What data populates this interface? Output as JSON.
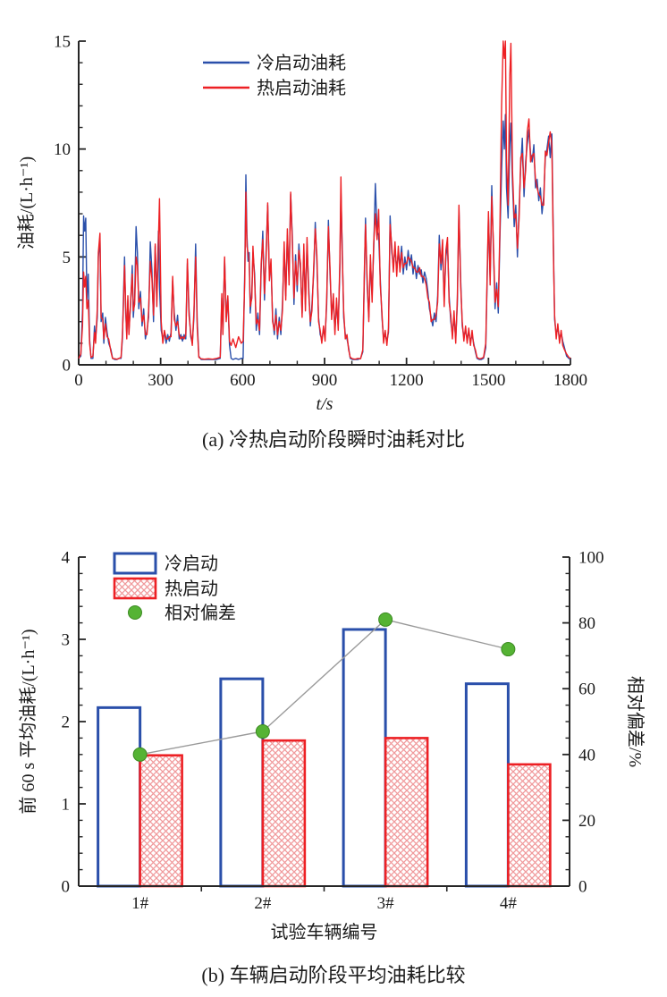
{
  "chart_data": [
    {
      "type": "line",
      "caption": "(a) 冷热启动阶段瞬时油耗对比",
      "xlabel": "t/s",
      "ylabel": "油耗/(L·h⁻¹)",
      "xlim": [
        0,
        1800
      ],
      "ylim": [
        0,
        15
      ],
      "xticks": [
        0,
        300,
        600,
        900,
        1200,
        1500,
        1800
      ],
      "x_minor_step": 100,
      "yticks": [
        0,
        5,
        10,
        15
      ],
      "y_minor_step": 1,
      "grid": false,
      "legend_position": "top-center",
      "axis_color": "#262626",
      "x": [
        0,
        8,
        14,
        18,
        22,
        26,
        30,
        35,
        40,
        45,
        52,
        58,
        62,
        68,
        72,
        78,
        82,
        88,
        92,
        98,
        104,
        110,
        118,
        124,
        132,
        140,
        148,
        155,
        160,
        164,
        168,
        172,
        176,
        180,
        184,
        190,
        196,
        200,
        205,
        210,
        215,
        220,
        226,
        232,
        238,
        244,
        250,
        256,
        262,
        268,
        274,
        280,
        286,
        292,
        296,
        302,
        308,
        314,
        320,
        326,
        332,
        338,
        344,
        350,
        356,
        362,
        368,
        374,
        380,
        386,
        392,
        398,
        404,
        410,
        416,
        422,
        428,
        434,
        440,
        448,
        460,
        475,
        490,
        505,
        518,
        524,
        528,
        534,
        540,
        546,
        552,
        558,
        565,
        575,
        585,
        595,
        602,
        608,
        612,
        616,
        620,
        624,
        628,
        634,
        638,
        644,
        650,
        656,
        662,
        668,
        674,
        680,
        686,
        692,
        698,
        704,
        710,
        716,
        722,
        728,
        734,
        740,
        746,
        752,
        758,
        764,
        770,
        776,
        782,
        788,
        794,
        800,
        806,
        812,
        818,
        824,
        830,
        836,
        842,
        848,
        854,
        860,
        866,
        872,
        878,
        884,
        890,
        896,
        902,
        908,
        914,
        920,
        926,
        932,
        938,
        944,
        950,
        956,
        960,
        964,
        970,
        976,
        982,
        988,
        994,
        1002,
        1012,
        1022,
        1032,
        1040,
        1046,
        1050,
        1056,
        1062,
        1068,
        1074,
        1080,
        1086,
        1092,
        1098,
        1104,
        1110,
        1116,
        1122,
        1128,
        1134,
        1140,
        1146,
        1152,
        1158,
        1164,
        1170,
        1176,
        1182,
        1188,
        1194,
        1200,
        1206,
        1212,
        1218,
        1224,
        1230,
        1236,
        1242,
        1248,
        1254,
        1260,
        1266,
        1272,
        1278,
        1284,
        1290,
        1296,
        1302,
        1308,
        1314,
        1320,
        1326,
        1332,
        1338,
        1344,
        1350,
        1356,
        1362,
        1368,
        1374,
        1380,
        1386,
        1392,
        1398,
        1404,
        1410,
        1416,
        1422,
        1428,
        1434,
        1440,
        1446,
        1452,
        1458,
        1466,
        1474,
        1482,
        1490,
        1496,
        1500,
        1506,
        1512,
        1518,
        1524,
        1530,
        1536,
        1542,
        1548,
        1554,
        1558,
        1562,
        1566,
        1572,
        1578,
        1582,
        1588,
        1594,
        1600,
        1606,
        1612,
        1618,
        1624,
        1630,
        1636,
        1642,
        1648,
        1654,
        1660,
        1666,
        1672,
        1678,
        1684,
        1690,
        1696,
        1702,
        1708,
        1714,
        1720,
        1726,
        1732,
        1738,
        1742,
        1748,
        1754,
        1760,
        1766,
        1772,
        1778,
        1786,
        1794,
        1800
      ],
      "series": [
        {
          "name": "冷启动油耗",
          "color": "#2a4faa",
          "values": [
            0.3,
            0.4,
            2.5,
            6.9,
            6.2,
            6.8,
            3.0,
            4.2,
            1.2,
            0.3,
            0.3,
            1.8,
            1.2,
            2.2,
            5.0,
            5.8,
            2.0,
            2.4,
            1.0,
            2.2,
            1.5,
            1.0,
            0.7,
            0.3,
            0.25,
            0.25,
            0.3,
            0.3,
            1.2,
            3.2,
            5.0,
            2.4,
            1.4,
            3.0,
            1.6,
            2.8,
            4.6,
            2.2,
            3.1,
            6.4,
            5.2,
            2.6,
            3.4,
            1.8,
            2.6,
            1.2,
            1.6,
            2.2,
            5.7,
            4.4,
            2.0,
            5.5,
            3.0,
            6.2,
            3.6,
            1.6,
            1.2,
            1.5,
            1.0,
            1.4,
            1.1,
            1.5,
            3.9,
            2.4,
            1.6,
            2.3,
            1.2,
            1.4,
            1.1,
            1.4,
            1.2,
            4.7,
            2.6,
            1.3,
            1.0,
            2.2,
            5.6,
            2.0,
            0.4,
            0.25,
            0.25,
            0.25,
            0.25,
            0.25,
            0.3,
            3.1,
            1.6,
            4.9,
            2.2,
            3.1,
            0.9,
            0.3,
            0.25,
            0.3,
            0.25,
            0.3,
            0.3,
            4.5,
            8.8,
            6.0,
            4.8,
            5.2,
            2.4,
            3.4,
            5.2,
            4.2,
            1.6,
            2.4,
            1.4,
            4.4,
            6.2,
            3.0,
            5.2,
            7.4,
            4.2,
            4.6,
            2.2,
            1.4,
            2.6,
            1.2,
            2.2,
            1.4,
            2.8,
            5.4,
            3.2,
            6.0,
            4.0,
            7.9,
            6.0,
            2.8,
            5.1,
            3.4,
            5.6,
            4.4,
            2.4,
            5.3,
            2.8,
            5.6,
            3.6,
            1.8,
            2.8,
            4.2,
            6.6,
            4.8,
            2.2,
            1.4,
            1.2,
            1.6,
            1.3,
            2.8,
            6.7,
            4.2,
            2.4,
            3.0,
            1.6,
            2.8,
            1.8,
            4.4,
            8.0,
            5.8,
            2.2,
            1.4,
            1.2,
            0.8,
            0.3,
            0.25,
            0.25,
            0.25,
            0.3,
            0.6,
            4.2,
            6.8,
            3.6,
            2.2,
            4.8,
            3.2,
            5.4,
            8.4,
            6.2,
            6.0,
            4.0,
            2.2,
            1.2,
            1.4,
            1.1,
            1.5,
            6.9,
            5.2,
            4.6,
            5.4,
            4.4,
            5.2,
            4.6,
            5.5,
            4.2,
            5.0,
            4.4,
            5.3,
            4.6,
            5.1,
            4.2,
            4.8,
            4.0,
            4.6,
            4.2,
            4.4,
            3.8,
            4.3,
            4.0,
            3.4,
            2.6,
            2.2,
            1.8,
            2.4,
            2.0,
            3.2,
            6.0,
            4.4,
            5.4,
            3.0,
            5.0,
            5.6,
            3.2,
            2.0,
            1.4,
            2.2,
            1.2,
            2.8,
            7.2,
            4.0,
            1.8,
            1.3,
            1.6,
            1.2,
            1.5,
            1.1,
            1.4,
            1.0,
            0.6,
            0.3,
            0.25,
            0.25,
            0.3,
            0.8,
            4.4,
            6.9,
            4.0,
            8.3,
            5.4,
            2.6,
            3.8,
            2.4,
            6.0,
            9.0,
            11.3,
            10.0,
            11.6,
            8.2,
            6.8,
            10.2,
            11.2,
            8.4,
            6.4,
            7.4,
            5.0,
            7.2,
            9.2,
            10.5,
            7.8,
            9.4,
            10.2,
            10.9,
            9.8,
            9.4,
            10.2,
            8.2,
            8.6,
            7.6,
            8.2,
            7.0,
            7.8,
            9.6,
            10.0,
            10.6,
            9.6,
            10.7,
            5.2,
            2.1,
            1.4,
            1.7,
            1.2,
            1.5,
            1.1,
            0.8,
            0.4,
            0.3,
            0.25
          ]
        },
        {
          "name": "热启动油耗",
          "color": "#ed2024",
          "values": [
            0.3,
            0.5,
            1.8,
            4.3,
            3.6,
            4.1,
            2.6,
            3.0,
            1.0,
            0.35,
            0.4,
            1.5,
            1.0,
            2.6,
            5.2,
            6.1,
            2.2,
            2.1,
            1.2,
            1.9,
            1.3,
            1.2,
            0.6,
            0.3,
            0.28,
            0.26,
            0.3,
            0.35,
            1.4,
            2.8,
            4.6,
            2.7,
            1.2,
            3.2,
            1.4,
            3.0,
            4.2,
            2.5,
            2.8,
            5.0,
            4.6,
            2.9,
            3.1,
            2.0,
            2.3,
            1.4,
            1.4,
            2.5,
            4.8,
            4.0,
            2.3,
            5.6,
            2.7,
            5.8,
            7.7,
            2.0,
            1.0,
            1.6,
            1.2,
            1.2,
            1.3,
            1.3,
            4.1,
            2.1,
            1.8,
            2.0,
            1.4,
            1.2,
            1.3,
            1.2,
            1.4,
            4.9,
            2.3,
            1.5,
            0.9,
            2.5,
            5.0,
            1.7,
            0.35,
            0.28,
            0.26,
            0.28,
            0.26,
            0.3,
            0.35,
            3.3,
            1.4,
            5.0,
            2.0,
            3.2,
            1.1,
            0.9,
            1.2,
            0.8,
            1.3,
            1.0,
            1.1,
            4.0,
            8.0,
            5.5,
            5.2,
            4.8,
            2.7,
            3.1,
            5.5,
            3.9,
            1.9,
            2.1,
            1.6,
            4.7,
            5.8,
            3.3,
            4.9,
            7.5,
            3.9,
            4.9,
            2.0,
            1.6,
            2.3,
            1.4,
            2.0,
            1.6,
            2.5,
            5.7,
            3.0,
            6.3,
            3.7,
            8.0,
            5.7,
            3.1,
            4.8,
            3.7,
            5.3,
            4.7,
            2.2,
            5.6,
            2.5,
            5.9,
            3.3,
            2.0,
            2.5,
            4.5,
            6.3,
            5.1,
            2.0,
            1.6,
            1.0,
            1.8,
            1.1,
            3.1,
            6.4,
            4.5,
            2.1,
            3.3,
            1.4,
            3.1,
            1.6,
            4.8,
            8.7,
            5.4,
            2.5,
            1.2,
            1.4,
            0.7,
            0.35,
            0.28,
            0.26,
            0.3,
            0.28,
            0.7,
            4.5,
            6.5,
            3.9,
            2.0,
            5.1,
            2.9,
            5.7,
            7.0,
            5.8,
            7.2,
            3.7,
            2.4,
            1.0,
            1.6,
            0.9,
            1.7,
            6.5,
            5.5,
            4.3,
            5.7,
            4.1,
            5.5,
            4.3,
            5.2,
            4.5,
            4.7,
            4.7,
            5.0,
            4.9,
            4.8,
            4.5,
            4.5,
            4.3,
            4.3,
            4.5,
            4.1,
            4.1,
            4.0,
            3.7,
            3.1,
            2.9,
            2.0,
            2.1,
            2.1,
            2.3,
            2.9,
            5.6,
            4.7,
            5.8,
            2.7,
            5.3,
            5.9,
            2.9,
            2.3,
            1.2,
            2.5,
            1.0,
            3.1,
            7.4,
            3.7,
            2.0,
            1.1,
            1.8,
            1.0,
            1.7,
            0.9,
            1.6,
            0.9,
            0.7,
            0.35,
            0.28,
            0.3,
            0.35,
            1.0,
            4.7,
            7.1,
            3.7,
            7.8,
            5.7,
            2.9,
            3.5,
            2.7,
            6.5,
            12.0,
            15.0,
            14.2,
            15.0,
            9.5,
            7.4,
            13.4,
            14.9,
            9.0,
            6.8,
            7.0,
            5.4,
            6.8,
            9.6,
            9.8,
            8.2,
            9.0,
            10.8,
            11.4,
            9.4,
            9.7,
            9.8,
            8.6,
            8.2,
            7.9,
            7.8,
            7.4,
            7.4,
            9.9,
            9.7,
            10.3,
            10.8,
            10.2,
            4.8,
            2.3,
            1.2,
            1.9,
            1.0,
            1.6,
            0.9,
            0.7,
            0.5,
            0.35,
            0.3
          ]
        }
      ]
    },
    {
      "type": "bar",
      "caption": "(b) 车辆启动阶段平均油耗比较",
      "xlabel": "试验车辆编号",
      "ylabel_left": "前 60 s 平均油耗/(L·h⁻¹)",
      "ylabel_right": "相对偏差/%",
      "categories": [
        "1#",
        "2#",
        "3#",
        "4#"
      ],
      "ylim_left": [
        0,
        4
      ],
      "yticks_left": [
        0,
        1,
        2,
        3,
        4
      ],
      "y_minor_step_left": 0.2,
      "ylim_right": [
        0,
        100
      ],
      "yticks_right": [
        0,
        20,
        40,
        60,
        80,
        100
      ],
      "y_minor_step_right": 5,
      "grid": false,
      "axis_color": "#262626",
      "series": [
        {
          "name": "冷启动",
          "color": "#2a4faa",
          "fill": "none",
          "values": [
            2.17,
            2.52,
            3.12,
            2.46
          ]
        },
        {
          "name": "热启动",
          "color": "#ed2024",
          "fill": "crosshatch",
          "values": [
            1.59,
            1.77,
            1.8,
            1.48
          ]
        }
      ],
      "deviation_series": {
        "name": "相对偏差",
        "axis": "right",
        "marker_color": "#55b334",
        "marker_edge": "#3c8a22",
        "line_color": "#9a9a9a",
        "values": [
          40,
          47,
          81,
          72
        ]
      }
    }
  ]
}
